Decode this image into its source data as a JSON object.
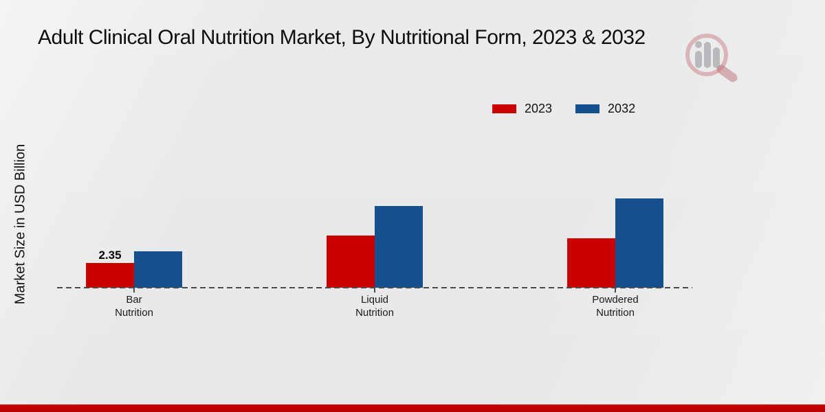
{
  "header": {
    "title": "Adult Clinical Oral Nutrition Market, By Nutritional Form, 2023 & 2032"
  },
  "chart_data": {
    "type": "bar",
    "title": "Adult Clinical Oral Nutrition Market, By Nutritional Form, 2023 & 2032",
    "xlabel": "",
    "ylabel": "Market Size in USD Billion",
    "categories": [
      "Bar Nutrition",
      "Liquid Nutrition",
      "Powdered Nutrition"
    ],
    "series": [
      {
        "name": "2023",
        "color": "#cb0000",
        "values": [
          2.35,
          4.95,
          4.7
        ]
      },
      {
        "name": "2032",
        "color": "#15508d",
        "values": [
          3.45,
          7.75,
          8.5
        ]
      }
    ],
    "value_labels": [
      {
        "series_index": 0,
        "category_index": 0,
        "text": "2.35"
      }
    ],
    "ylim": [
      0,
      10
    ],
    "grid": false,
    "legend_position": "top-right",
    "baseline_style": "dashed",
    "y_axis_ticks_visible": false
  },
  "style": {
    "accent_red": "#cb0000",
    "accent_blue": "#15508d",
    "axis_color": "#4a4a4a",
    "footer_color": "#bf0000",
    "background": "#e8e9ea"
  },
  "watermark": {
    "icon": "magnifier-bar-chart-logo"
  }
}
